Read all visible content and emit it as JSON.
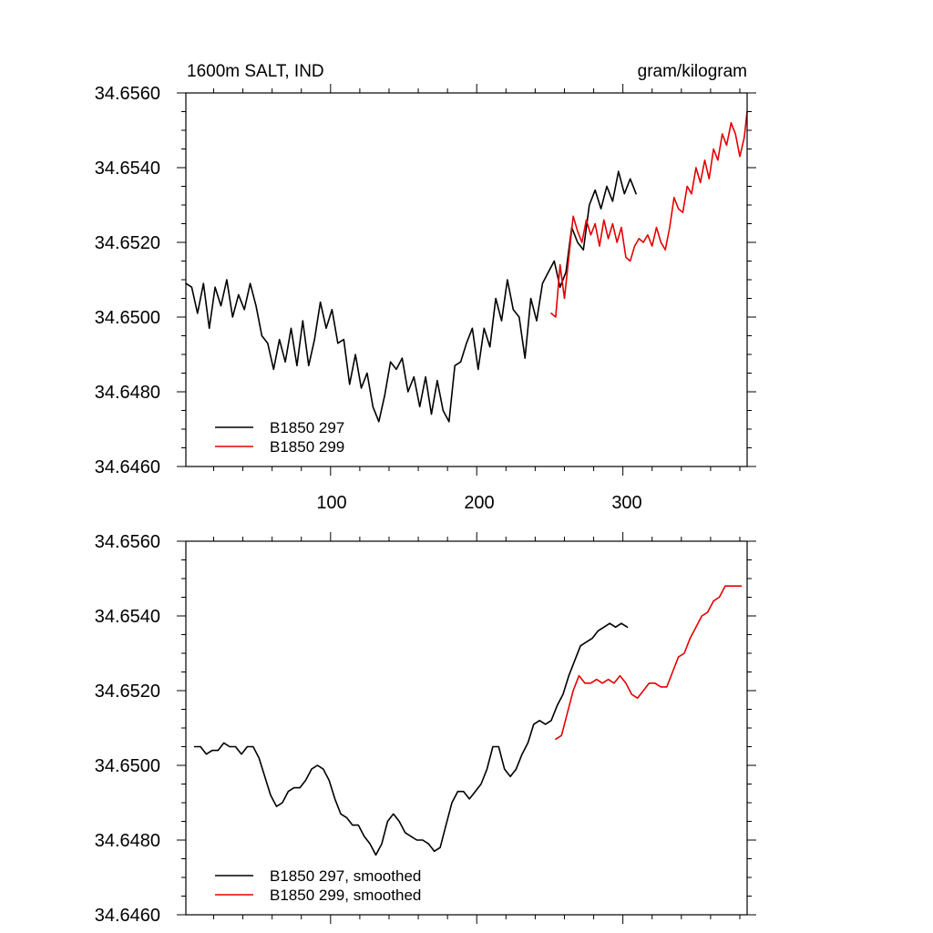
{
  "chart_data": [
    {
      "type": "line",
      "title_left": "1600m SALT, IND",
      "title_right": "gram/kilogram",
      "xlabel": "",
      "ylabel": "",
      "xlim": [
        1,
        385
      ],
      "ylim": [
        34.646,
        34.656
      ],
      "xticks": [
        100,
        200,
        300
      ],
      "xtick_labels": [
        "100",
        "200",
        "300"
      ],
      "xtick_labels_position": "bottom",
      "yticks": [
        34.646,
        34.648,
        34.65,
        34.652,
        34.654,
        34.656
      ],
      "ytick_labels": [
        "34.6460",
        "34.6480",
        "34.6500",
        "34.6520",
        "34.6540",
        "34.6560"
      ],
      "legend_position": "bottom-left",
      "series": [
        {
          "name": "B1850 297",
          "color": "#000000",
          "x": [
            1,
            5,
            9,
            13,
            17,
            21,
            25,
            29,
            33,
            37,
            41,
            45,
            49,
            53,
            57,
            61,
            65,
            69,
            73,
            77,
            81,
            85,
            89,
            93,
            97,
            101,
            105,
            109,
            113,
            117,
            121,
            125,
            129,
            133,
            137,
            141,
            145,
            149,
            153,
            157,
            161,
            165,
            169,
            173,
            177,
            181,
            185,
            189,
            193,
            197,
            201,
            205,
            209,
            213,
            217,
            221,
            225,
            229,
            233,
            237,
            241,
            245,
            249,
            253,
            257,
            261,
            265,
            269,
            273,
            277,
            281,
            285,
            289,
            293,
            297,
            301,
            305,
            309
          ],
          "y": [
            34.6509,
            34.6508,
            34.6501,
            34.6509,
            34.6497,
            34.6508,
            34.6503,
            34.651,
            34.65,
            34.6506,
            34.6502,
            34.6509,
            34.6503,
            34.6495,
            34.6493,
            34.6486,
            34.6494,
            34.6488,
            34.6497,
            34.6487,
            34.6499,
            34.6487,
            34.6494,
            34.6504,
            34.6497,
            34.6502,
            34.6493,
            34.6494,
            34.6482,
            34.649,
            34.6481,
            34.6485,
            34.6476,
            34.6472,
            34.6479,
            34.6488,
            34.6486,
            34.6489,
            34.648,
            34.6484,
            34.6476,
            34.6484,
            34.6474,
            34.6483,
            34.6475,
            34.6472,
            34.6487,
            34.6488,
            34.6493,
            34.6497,
            34.6486,
            34.6497,
            34.6492,
            34.6505,
            34.6499,
            34.651,
            34.6502,
            34.65,
            34.6489,
            34.6505,
            34.6499,
            34.6509,
            34.6512,
            34.6515,
            34.6508,
            34.6512,
            34.6524,
            34.652,
            34.6518,
            34.653,
            34.6534,
            34.6529,
            34.6535,
            34.6531,
            34.6539,
            34.6533,
            34.6537,
            34.6533
          ]
        },
        {
          "name": "B1850 299",
          "color": "#e60000",
          "x": [
            251,
            254,
            257,
            260,
            263,
            266,
            269,
            272,
            275,
            278,
            281,
            284,
            287,
            290,
            293,
            296,
            299,
            302,
            305,
            308,
            311,
            314,
            317,
            320,
            323,
            326,
            329,
            332,
            335,
            338,
            341,
            344,
            347,
            350,
            353,
            356,
            359,
            362,
            365,
            368,
            371,
            374,
            377,
            380,
            383,
            385
          ],
          "y": [
            34.6501,
            34.65,
            34.6514,
            34.6505,
            34.6516,
            34.6527,
            34.6523,
            34.652,
            34.6526,
            34.6522,
            34.6525,
            34.6519,
            34.6526,
            34.6521,
            34.6525,
            34.652,
            34.6524,
            34.6516,
            34.6515,
            34.6519,
            34.6521,
            34.652,
            34.6522,
            34.6519,
            34.6524,
            34.652,
            34.6518,
            34.6524,
            34.6532,
            34.6529,
            34.6528,
            34.6535,
            34.6533,
            34.654,
            34.6536,
            34.6542,
            34.6537,
            34.6545,
            34.6542,
            34.6549,
            34.6546,
            34.6552,
            34.6549,
            34.6543,
            34.6548,
            34.6555
          ]
        }
      ]
    },
    {
      "type": "line",
      "title_left": "",
      "title_right": "",
      "xlabel": "",
      "ylabel": "",
      "xlim": [
        1,
        385
      ],
      "ylim": [
        34.646,
        34.656
      ],
      "xticks": [
        100,
        200,
        300
      ],
      "xtick_labels": [],
      "yticks": [
        34.646,
        34.648,
        34.65,
        34.652,
        34.654,
        34.656
      ],
      "ytick_labels": [
        "34.6460",
        "34.6480",
        "34.6500",
        "34.6520",
        "34.6540",
        "34.6560"
      ],
      "legend_position": "bottom-left",
      "series": [
        {
          "name": "B1850 297, smoothed",
          "color": "#000000",
          "x": [
            7,
            11,
            15,
            19,
            23,
            27,
            31,
            35,
            39,
            43,
            47,
            51,
            55,
            59,
            63,
            67,
            71,
            75,
            79,
            83,
            87,
            91,
            95,
            99,
            103,
            107,
            111,
            115,
            119,
            123,
            127,
            131,
            135,
            139,
            143,
            147,
            151,
            155,
            159,
            163,
            167,
            171,
            175,
            179,
            183,
            187,
            191,
            195,
            199,
            203,
            207,
            211,
            215,
            219,
            223,
            227,
            231,
            235,
            239,
            243,
            247,
            251,
            255,
            259,
            263,
            267,
            271,
            275,
            279,
            283,
            287,
            291,
            295,
            299,
            303
          ],
          "y": [
            34.6505,
            34.6505,
            34.6503,
            34.6504,
            34.6504,
            34.6506,
            34.6505,
            34.6505,
            34.6503,
            34.6505,
            34.6505,
            34.6502,
            34.6497,
            34.6492,
            34.6489,
            34.649,
            34.6493,
            34.6494,
            34.6494,
            34.6496,
            34.6499,
            34.65,
            34.6499,
            34.6496,
            34.6491,
            34.6487,
            34.6486,
            34.6484,
            34.6484,
            34.6481,
            34.6479,
            34.6476,
            34.6479,
            34.6485,
            34.6487,
            34.6485,
            34.6482,
            34.6481,
            34.648,
            34.648,
            34.6479,
            34.6477,
            34.6478,
            34.6484,
            34.649,
            34.6493,
            34.6493,
            34.6491,
            34.6493,
            34.6495,
            34.6499,
            34.6505,
            34.6505,
            34.6499,
            34.6497,
            34.6499,
            34.6503,
            34.6506,
            34.6511,
            34.6512,
            34.6511,
            34.6512,
            34.6516,
            34.6519,
            34.6524,
            34.6528,
            34.6532,
            34.6533,
            34.6534,
            34.6536,
            34.6537,
            34.6538,
            34.6537,
            34.6538,
            34.6537
          ]
        },
        {
          "name": "B1850 299, smoothed",
          "color": "#e60000",
          "x": [
            254,
            258,
            262,
            266,
            270,
            274,
            278,
            282,
            286,
            290,
            294,
            298,
            302,
            306,
            310,
            314,
            318,
            322,
            326,
            330,
            334,
            338,
            342,
            346,
            350,
            354,
            358,
            362,
            366,
            370,
            374,
            378,
            381
          ],
          "y": [
            34.6507,
            34.6508,
            34.6514,
            34.652,
            34.6524,
            34.6522,
            34.6522,
            34.6523,
            34.6522,
            34.6523,
            34.6522,
            34.6524,
            34.6522,
            34.6519,
            34.6518,
            34.652,
            34.6522,
            34.6522,
            34.6521,
            34.6521,
            34.6525,
            34.6529,
            34.653,
            34.6534,
            34.6537,
            34.654,
            34.6541,
            34.6544,
            34.6545,
            34.6548,
            34.6548,
            34.6548,
            34.6548
          ]
        }
      ]
    }
  ]
}
